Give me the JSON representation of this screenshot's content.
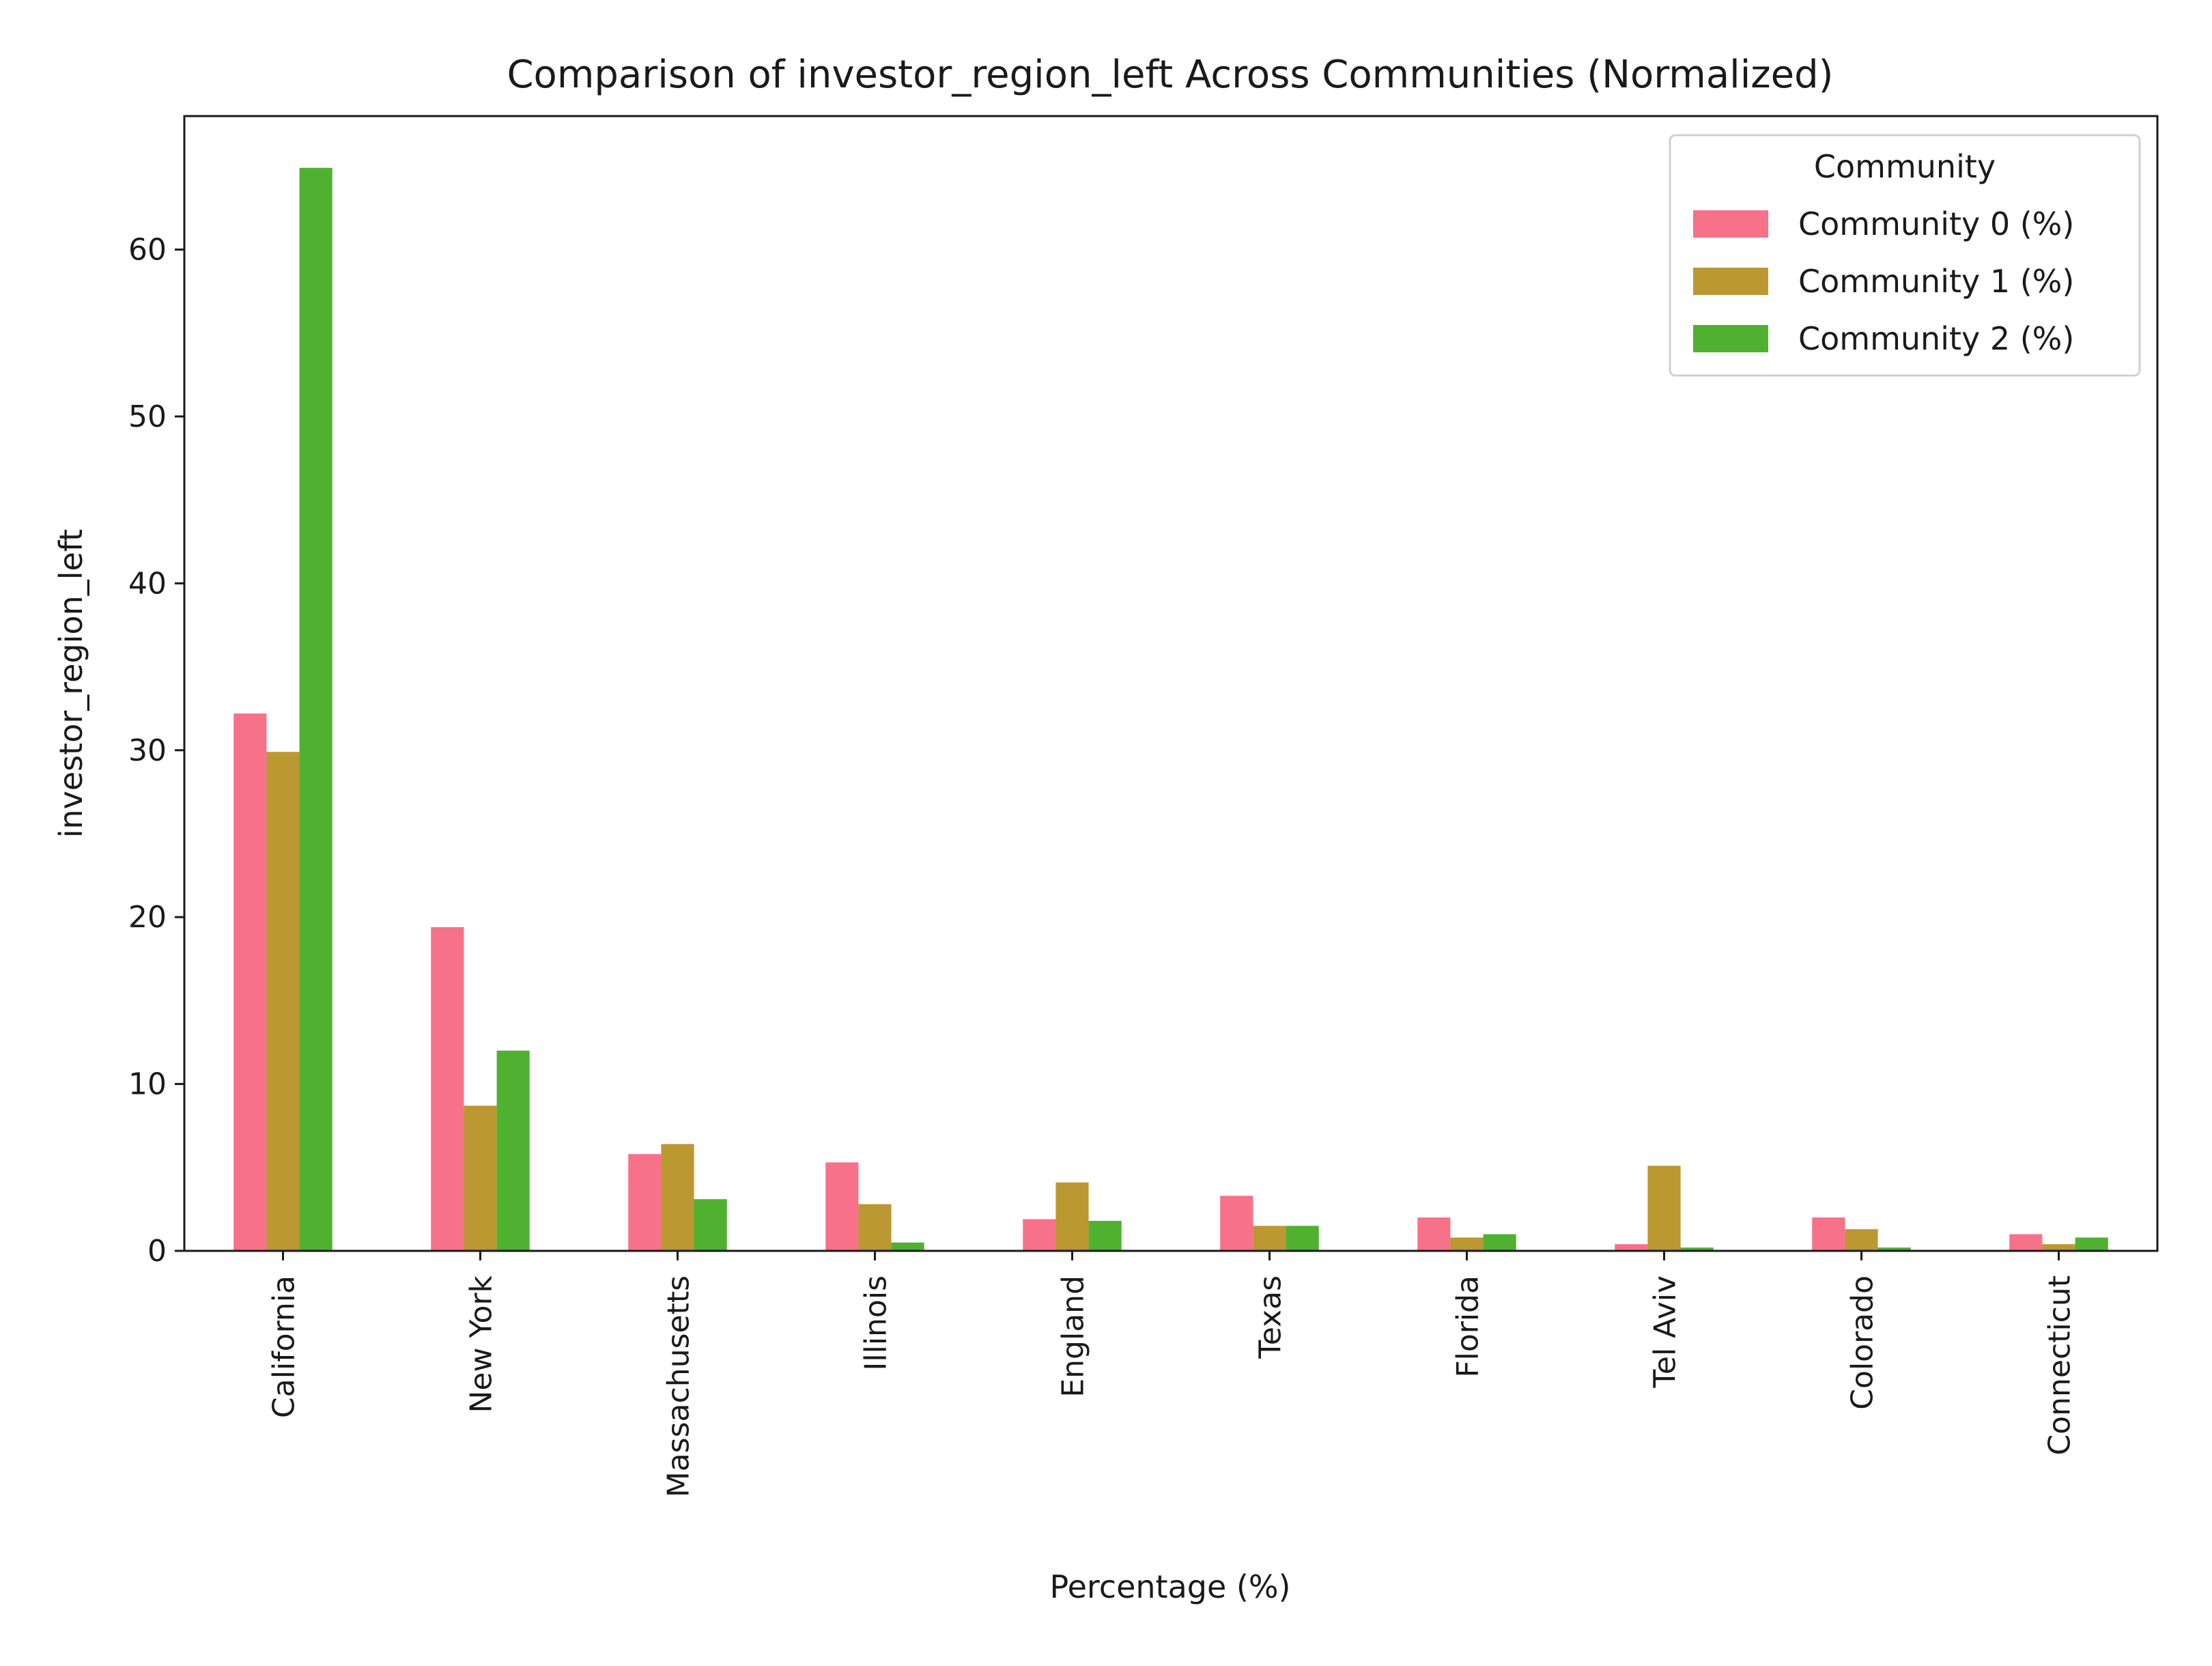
{
  "chart_data": {
    "type": "bar",
    "title": "Comparison of investor_region_left Across Communities (Normalized)",
    "xlabel": "Percentage (%)",
    "ylabel": "investor_region_left",
    "categories": [
      "California",
      "New York",
      "Massachusetts",
      "Illinois",
      "England",
      "Texas",
      "Florida",
      "Tel Aviv",
      "Colorado",
      "Connecticut"
    ],
    "series": [
      {
        "name": "Community 0 (%)",
        "color": "#f77189",
        "values": [
          32.2,
          19.4,
          5.8,
          5.3,
          1.9,
          3.3,
          2.0,
          0.4,
          2.0,
          1.0
        ]
      },
      {
        "name": "Community 1 (%)",
        "color": "#bb9832",
        "values": [
          29.9,
          8.7,
          6.4,
          2.8,
          4.1,
          1.5,
          0.8,
          5.1,
          1.3,
          0.4
        ]
      },
      {
        "name": "Community 2 (%)",
        "color": "#50b131",
        "values": [
          64.9,
          12.0,
          3.1,
          0.5,
          1.8,
          1.5,
          1.0,
          0.2,
          0.2,
          0.8
        ]
      }
    ],
    "ylim": [
      0,
      68
    ],
    "yticks": [
      0,
      10,
      20,
      30,
      40,
      50,
      60
    ],
    "grid": false,
    "legend": {
      "title": "Community",
      "position": "top-right"
    }
  }
}
